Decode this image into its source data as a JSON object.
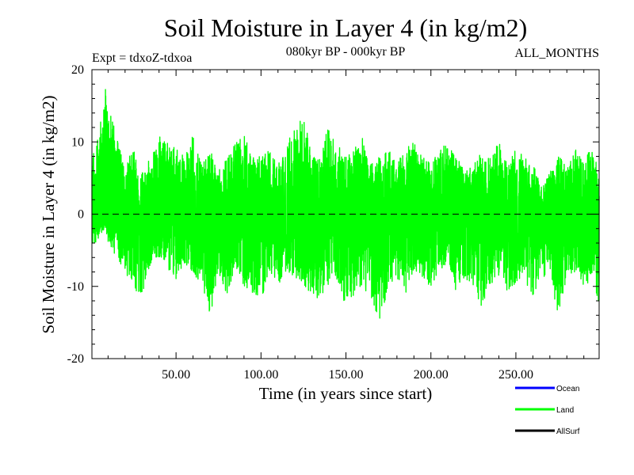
{
  "chart_data": {
    "type": "line",
    "title": "Soil Moisture in Layer 4 (in kg/m2)",
    "subtitle_left": "Expt = tdxoZ-tdxoa",
    "subtitle_center": "080kyr BP - 000kyr BP",
    "subtitle_right": "ALL_MONTHS",
    "xlabel": "Time (in years since start)",
    "ylabel": "Soil Moisture in Layer 4 (in kg/m2)",
    "xlim": [
      0.5,
      299
    ],
    "ylim": [
      -20,
      20
    ],
    "x_ticks": [
      50,
      100,
      150,
      200,
      250
    ],
    "x_tick_labels": [
      "50.00",
      "100.00",
      "150.00",
      "200.00",
      "250.00"
    ],
    "y_ticks": [
      -20,
      -10,
      0,
      10,
      20
    ],
    "y_tick_labels": [
      "-20",
      "-10",
      "0",
      "10",
      "20"
    ],
    "zero_line": "dashed",
    "legend_placement": "bottom-right",
    "series": [
      {
        "name": "Land",
        "color": "#00ff00",
        "envelope_x": [
          0.5,
          5,
          8,
          10,
          15,
          20,
          25,
          30,
          35,
          40,
          45,
          50,
          55,
          60,
          65,
          70,
          75,
          80,
          85,
          90,
          95,
          100,
          105,
          110,
          115,
          120,
          125,
          130,
          135,
          140,
          145,
          150,
          155,
          160,
          165,
          170,
          175,
          180,
          185,
          190,
          195,
          200,
          205,
          210,
          215,
          220,
          225,
          230,
          235,
          240,
          245,
          250,
          255,
          260,
          265,
          270,
          275,
          280,
          285,
          290,
          295,
          299
        ],
        "envelope_max": [
          8,
          12,
          19,
          15,
          11,
          7,
          9,
          6,
          8,
          11,
          10,
          9,
          8,
          11,
          7,
          9,
          6,
          8,
          10,
          11,
          9,
          8,
          9,
          7,
          10,
          12,
          14,
          8,
          9,
          13,
          10,
          8,
          9,
          11,
          7,
          8,
          9,
          7,
          9,
          10,
          8,
          7,
          9,
          10,
          8,
          6,
          7,
          9,
          8,
          10,
          7,
          9,
          8,
          7,
          4,
          6,
          8,
          7,
          9,
          7,
          10,
          5
        ],
        "envelope_min": [
          -5,
          -3,
          -2,
          -4,
          -6,
          -8,
          -10,
          -12,
          -7,
          -6,
          -8,
          -9,
          -7,
          -8,
          -10,
          -14,
          -9,
          -11,
          -8,
          -10,
          -11,
          -12,
          -9,
          -10,
          -8,
          -9,
          -10,
          -11,
          -12,
          -10,
          -9,
          -13,
          -11,
          -10,
          -12,
          -15,
          -10,
          -9,
          -11,
          -8,
          -9,
          -10,
          -8,
          -7,
          -11,
          -9,
          -10,
          -13,
          -10,
          -9,
          -11,
          -10,
          -9,
          -12,
          -8,
          -10,
          -14,
          -9,
          -8,
          -10,
          -9,
          -13
        ]
      }
    ],
    "legend": [
      {
        "label": "Ocean",
        "color": "#0000ff"
      },
      {
        "label": "Land",
        "color": "#00ff00"
      },
      {
        "label": "AllSurf",
        "color": "#000000"
      }
    ]
  }
}
